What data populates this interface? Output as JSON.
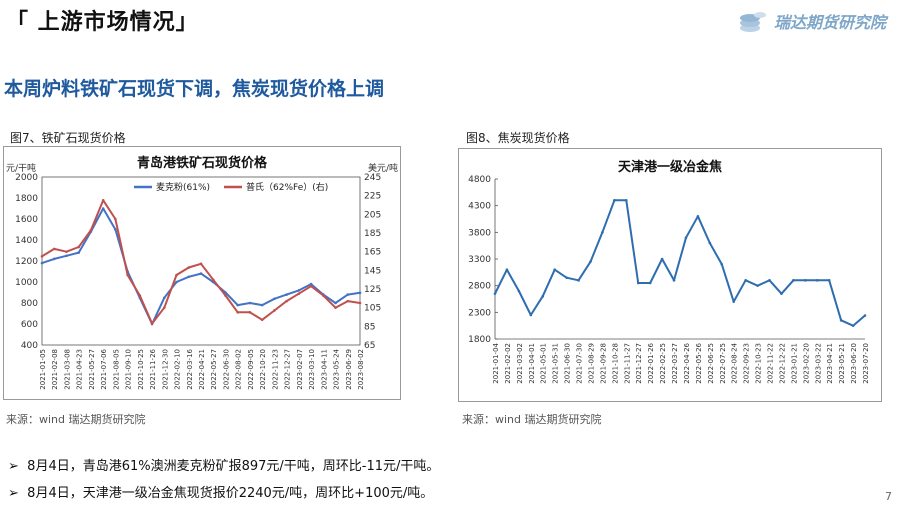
{
  "header": {
    "title": "「 上游市场情况」"
  },
  "logo": {
    "name": "瑞达期货研究院"
  },
  "headline": "本周炉料铁矿石现货下调，焦炭现货价格上调",
  "fig7": {
    "label": "图7、铁矿石现货价格",
    "source": "来源：wind   瑞达期货研究院"
  },
  "fig8": {
    "label": "图8、焦炭现货价格",
    "source": "来源：wind   瑞达期货研究院"
  },
  "bullets": [
    "8月4日，青岛港61%澳洲麦克粉矿报897元/干吨，周环比-11元/干吨。",
    "8月4日，天津港一级冶金焦现货报价2240元/吨，周环比+100元/吨。"
  ],
  "page_number": "7",
  "colors": {
    "blue_series": "#4472c4",
    "red_series": "#c0504d",
    "title_blue": "#1f5a9e",
    "coke_line": "#2e6db0"
  },
  "chart_data": [
    {
      "type": "line",
      "title": "青岛港铁矿石现货价格",
      "ylabel": "元/干吨",
      "y2label": "美元/吨",
      "ylim": [
        400,
        2000
      ],
      "y2lim": [
        65,
        245
      ],
      "yticks": [
        "2000",
        "1800",
        "1600",
        "1400",
        "1200",
        "1000",
        "800",
        "600",
        "400"
      ],
      "y2ticks": [
        "245",
        "225",
        "205",
        "185",
        "165",
        "145",
        "125",
        "105",
        "85",
        "65"
      ],
      "x": [
        "2021-01-05",
        "2021-02-08",
        "2021-03-08",
        "2021-04-23",
        "2021-05-27",
        "2021-07-06",
        "2021-08-05",
        "2021-09-10",
        "2021-10-25",
        "2021-11-26",
        "2021-12-30",
        "2022-02-10",
        "2022-03-16",
        "2022-04-21",
        "2022-05-27",
        "2022-06-30",
        "2022-08-02",
        "2022-09-05",
        "2022-10-20",
        "2022-11-23",
        "2022-12-27",
        "2023-02-07",
        "2023-03-10",
        "2023-04-11",
        "2023-05-24",
        "2023-06-29",
        "2023-08-02"
      ],
      "legend_position": "top",
      "series": [
        {
          "name": "麦克粉(61%)",
          "axis": "left",
          "color": "#4472c4",
          "values": [
            1180,
            1220,
            1250,
            1280,
            1480,
            1700,
            1500,
            1100,
            850,
            600,
            850,
            1000,
            1050,
            1080,
            1000,
            900,
            780,
            800,
            780,
            840,
            880,
            920,
            980,
            880,
            800,
            880,
            897
          ]
        },
        {
          "name": "普氏（62%Fe）(右)",
          "axis": "right",
          "color": "#c0504d",
          "values": [
            160,
            168,
            165,
            170,
            188,
            220,
            200,
            140,
            118,
            88,
            105,
            140,
            148,
            152,
            135,
            118,
            100,
            100,
            92,
            102,
            112,
            120,
            128,
            118,
            105,
            112,
            110
          ]
        }
      ]
    },
    {
      "type": "line",
      "title": "天津港一级冶金焦",
      "ylim": [
        1800,
        4800
      ],
      "yticks": [
        "4800",
        "4300",
        "3800",
        "3300",
        "2800",
        "2300",
        "1800"
      ],
      "x": [
        "2021-01-04",
        "2021-02-02",
        "2021-03-02",
        "2021-04-01",
        "2021-05-02",
        "2021-06-02",
        "2021-07-02",
        "2021-08-02",
        "2021-09-02",
        "2021-10-02",
        "2021-11-02",
        "2021-12-02",
        "2022-01-02",
        "2022-02-02",
        "2022-03-02",
        "2022-04-02",
        "2022-05-02",
        "2022-06-02",
        "2022-07-02",
        "2022-08-02",
        "2022-09-02",
        "2022-10-02",
        "2022-11-02",
        "2022-12-02",
        "2023-01-02",
        "2023-02-02",
        "2023-03-02",
        "2023-04-02",
        "2023-05-02",
        "2023-06-02",
        "2023-07-02",
        "2023-07-31"
      ],
      "x_tick_labels": [
        "2021-01-04",
        "2021-02-02",
        "2021-03-02",
        "2021-04-01",
        "2021-05-01",
        "2021-05-31",
        "2021-06-30",
        "2021-07-30",
        "2021-08-29",
        "2021-09-28",
        "2021-10-28",
        "2021-11-27",
        "2021-12-27",
        "2022-01-26",
        "2022-02-25",
        "2022-03-27",
        "2022-04-26",
        "2022-05-26",
        "2022-06-25",
        "2022-07-25",
        "2022-08-24",
        "2022-09-23",
        "2022-10-23",
        "2022-11-22",
        "2022-12-22",
        "2023-01-21",
        "2023-02-20",
        "2023-03-22",
        "2023-04-21",
        "2023-05-21",
        "2023-06-20",
        "2023-07-20"
      ],
      "series": [
        {
          "name": "天津港一级冶金焦",
          "color": "#2e6db0",
          "values": [
            2650,
            3100,
            2700,
            2250,
            2600,
            3100,
            2950,
            2900,
            3250,
            3800,
            4400,
            4400,
            2850,
            2850,
            3300,
            2900,
            3700,
            4100,
            3600,
            3200,
            2500,
            2900,
            2800,
            2900,
            2650,
            2900,
            2900,
            2900,
            2900,
            2150,
            2050,
            2240
          ]
        }
      ]
    }
  ]
}
